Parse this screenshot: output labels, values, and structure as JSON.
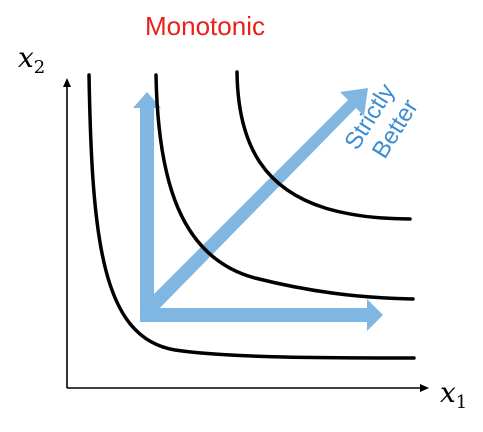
{
  "title": "Monotonic",
  "axes": {
    "y_label": "x",
    "y_label_sub": "2",
    "x_label": "x",
    "x_label_sub": "1"
  },
  "arrow_label": {
    "line1": "Strictly",
    "line2": "Better"
  },
  "colors": {
    "title": "#e8211a",
    "curve": "#000000",
    "arrow": "#7fb6e2",
    "arrow_text": "#3c8ed2",
    "axis": "#000000"
  }
}
